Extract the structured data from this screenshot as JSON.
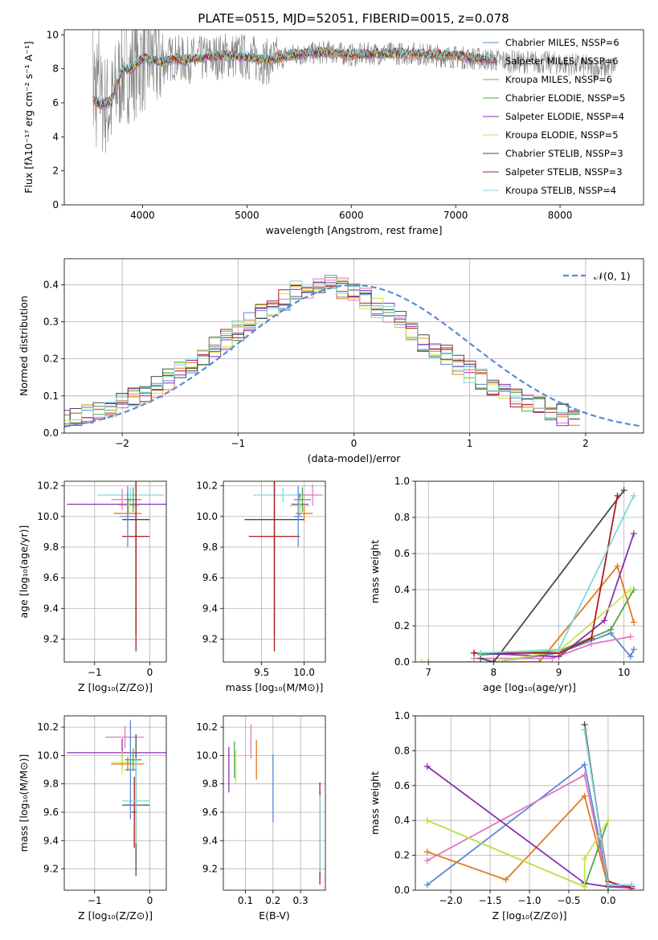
{
  "figure_title": "PLATE=0515, MJD=52051, FIBERID=0015, z=0.078",
  "chart_data": [
    {
      "id": "spectrum",
      "type": "line",
      "xlabel": "wavelength [Angstrom, rest frame]",
      "ylabel": "Flux [fλ10⁻¹⁷ erg cm⁻² s⁻¹ A⁻¹]",
      "xlim": [
        3250,
        8800
      ],
      "ylim": [
        0,
        10.3
      ],
      "xticks": [
        4000,
        5000,
        6000,
        7000,
        8000
      ],
      "yticks": [
        0,
        2,
        4,
        6,
        8,
        10
      ],
      "grid": false,
      "legend_position": "top-right",
      "data_line": {
        "color": "#808080",
        "x": [
          3525,
          3600,
          3700,
          3800,
          3900,
          4000,
          4100,
          4200,
          4300,
          4400,
          4600,
          4800,
          5000,
          5200,
          5400,
          5600,
          5800,
          6000,
          6200,
          6400,
          6600,
          6800,
          7000,
          7200,
          7400,
          7600,
          7800,
          8000,
          8200,
          8400,
          8530
        ],
        "y": [
          9.5,
          6.0,
          5.8,
          7.8,
          8.0,
          8.5,
          8.6,
          8.4,
          8.7,
          8.5,
          8.6,
          8.8,
          8.7,
          8.4,
          8.8,
          8.9,
          9.0,
          8.8,
          8.9,
          8.9,
          8.9,
          8.8,
          8.7,
          8.6,
          8.5,
          8.4,
          8.4,
          8.3,
          8.2,
          8.0,
          8.2
        ]
      },
      "series": [
        {
          "name": "Chabrier MILES, N_SSP=6",
          "color": "#5a8ad6"
        },
        {
          "name": "Salpeter MILES, N_SSP=6",
          "color": "#e377c2"
        },
        {
          "name": "Kroupa MILES, N_SSP=6",
          "color": "#e07b1f"
        },
        {
          "name": "Chabrier ELODIE, N_SSP=5",
          "color": "#4aa84a"
        },
        {
          "name": "Salpeter ELODIE, N_SSP=4",
          "color": "#8c2fb0"
        },
        {
          "name": "Kroupa ELODIE, N_SSP=5",
          "color": "#cbe34b"
        },
        {
          "name": "Chabrier STELIB, N_SSP=3",
          "color": "#4a4a4a"
        },
        {
          "name": "Salpeter STELIB, N_SSP=3",
          "color": "#b01c1c"
        },
        {
          "name": "Kroupa STELIB, N_SSP=4",
          "color": "#7ed8e0"
        }
      ],
      "model_curve": {
        "x": [
          3525,
          3600,
          3700,
          3800,
          3900,
          4000,
          4100,
          4200,
          4300,
          4400,
          4600,
          4800,
          5000,
          5200,
          5400,
          5600,
          5800,
          6000,
          6200,
          6400,
          6600,
          6800,
          7000,
          7200,
          7400
        ],
        "y": [
          6.2,
          5.9,
          6.1,
          7.9,
          8.0,
          8.6,
          8.5,
          8.4,
          8.6,
          8.5,
          8.7,
          8.8,
          8.7,
          8.5,
          8.8,
          8.9,
          9.0,
          8.8,
          8.9,
          8.9,
          8.9,
          8.8,
          8.8,
          8.6,
          8.5
        ]
      }
    },
    {
      "id": "residuals",
      "type": "line",
      "xlabel": "(data-model)/error",
      "ylabel": "Normed distribution",
      "xlim": [
        -2.5,
        2.5
      ],
      "ylim": [
        0,
        0.47
      ],
      "xticks": [
        -2,
        -1,
        0,
        1,
        2
      ],
      "yticks": [
        0.0,
        0.1,
        0.2,
        0.3,
        0.4
      ],
      "grid": true,
      "legend": [
        {
          "name": "𝒩(0, 1)",
          "color": "#5a8ad6",
          "style": "dashed"
        }
      ],
      "legend_position": "top-right",
      "bin_width": 0.1,
      "histogram_envelope": [
        0.035,
        0.04,
        0.05,
        0.06,
        0.07,
        0.085,
        0.095,
        0.11,
        0.125,
        0.145,
        0.165,
        0.185,
        0.21,
        0.23,
        0.25,
        0.275,
        0.3,
        0.32,
        0.34,
        0.36,
        0.38,
        0.39,
        0.4,
        0.4,
        0.39,
        0.38,
        0.36,
        0.34,
        0.32,
        0.3,
        0.275,
        0.25,
        0.23,
        0.21,
        0.185,
        0.165,
        0.145,
        0.125,
        0.11,
        0.095,
        0.085,
        0.07,
        0.06,
        0.05,
        0.045
      ]
    },
    {
      "id": "Z_vs_age",
      "type": "scatter",
      "xlabel": "Z [log₁₀(Z/Z⊙)]",
      "ylabel": "age  [log₁₀(age/yr)]",
      "xlim": [
        -1.55,
        0.3
      ],
      "ylim": [
        9.05,
        10.23
      ],
      "xticks": [
        -1,
        0
      ],
      "yticks": [
        9.2,
        9.4,
        9.6,
        9.8,
        10.0,
        10.2
      ],
      "grid": true,
      "points": [
        {
          "x": -0.35,
          "y": 10.14,
          "xerr": 0.6,
          "yerr": 0.05,
          "series": 8
        },
        {
          "x": -0.5,
          "y": 10.11,
          "xerr": 0.2,
          "yerr": 0.07,
          "series": 1
        },
        {
          "x": -0.4,
          "y": 10.08,
          "xerr": 1.1,
          "yerr": 0.07,
          "series": 4
        },
        {
          "x": -0.4,
          "y": 10.02,
          "xerr": 0.25,
          "yerr": 0.05,
          "series": 2
        },
        {
          "x": -0.38,
          "y": 10.07,
          "xerr": 0.18,
          "yerr": 0.05,
          "series": 5
        },
        {
          "x": -0.3,
          "y": 10.11,
          "xerr": 0.15,
          "yerr": 0.08,
          "series": 3
        },
        {
          "x": -0.25,
          "y": 9.98,
          "xerr": 0.25,
          "yerr": 0.75,
          "series": 6
        },
        {
          "x": -0.25,
          "y": 9.87,
          "xerr": 0.25,
          "yerr": 0.75,
          "series": 7
        },
        {
          "x": -0.4,
          "y": 10.0,
          "xerr": 0.15,
          "yerr": 0.2,
          "series": 0
        }
      ]
    },
    {
      "id": "mass_vs_age",
      "type": "scatter",
      "xlabel": "mass [log₁₀(M/M⊙)]",
      "ylabel": "",
      "xlim": [
        9.05,
        10.25
      ],
      "ylim": [
        9.05,
        10.23
      ],
      "xticks": [
        9.5,
        10.0
      ],
      "yticks": [
        9.2,
        9.4,
        9.6,
        9.8,
        10.0,
        10.2
      ],
      "grid": true,
      "points": [
        {
          "x": 9.75,
          "y": 10.14,
          "xerr": 0.35,
          "yerr": 0.05,
          "series": 8
        },
        {
          "x": 10.1,
          "y": 10.14,
          "xerr": 0.12,
          "yerr": 0.07,
          "series": 1
        },
        {
          "x": 9.95,
          "y": 10.08,
          "xerr": 0.1,
          "yerr": 0.07,
          "series": 4
        },
        {
          "x": 10.0,
          "y": 10.02,
          "xerr": 0.1,
          "yerr": 0.05,
          "series": 2
        },
        {
          "x": 9.95,
          "y": 10.07,
          "xerr": 0.12,
          "yerr": 0.05,
          "series": 5
        },
        {
          "x": 9.98,
          "y": 10.11,
          "xerr": 0.1,
          "yerr": 0.08,
          "series": 3
        },
        {
          "x": 9.65,
          "y": 9.98,
          "xerr": 0.35,
          "yerr": 0.75,
          "series": 6
        },
        {
          "x": 9.65,
          "y": 9.87,
          "xerr": 0.3,
          "yerr": 0.75,
          "series": 7
        },
        {
          "x": 9.93,
          "y": 10.0,
          "xerr": 0.05,
          "yerr": 0.2,
          "series": 0
        }
      ]
    },
    {
      "id": "age_vs_weight",
      "type": "line",
      "xlabel": "age  [log₁₀(age/yr)]",
      "ylabel": "mass weight",
      "xlim": [
        6.8,
        10.3
      ],
      "ylim": [
        0,
        1.0
      ],
      "xticks": [
        7,
        8,
        9,
        10
      ],
      "yticks": [
        0.0,
        0.2,
        0.4,
        0.6,
        0.8,
        1.0
      ],
      "grid": true,
      "series_lines": [
        {
          "series": 0,
          "x": [
            8.0,
            9.0,
            9.8,
            10.1,
            10.15
          ],
          "y": [
            0.0,
            0.05,
            0.16,
            0.03,
            0.07
          ]
        },
        {
          "series": 1,
          "x": [
            7.7,
            8.9,
            9.5,
            10.1
          ],
          "y": [
            0.02,
            0.02,
            0.1,
            0.14
          ]
        },
        {
          "series": 2,
          "x": [
            7.0,
            8.7,
            9.9,
            10.15
          ],
          "y": [
            0.0,
            0.0,
            0.53,
            0.22
          ]
        },
        {
          "series": 3,
          "x": [
            7.8,
            9.0,
            9.8,
            10.15
          ],
          "y": [
            0.04,
            0.06,
            0.18,
            0.4
          ]
        },
        {
          "series": 4,
          "x": [
            7.7,
            9.0,
            9.7,
            10.15
          ],
          "y": [
            0.05,
            0.03,
            0.23,
            0.71
          ]
        },
        {
          "series": 5,
          "x": [
            6.9,
            8.0,
            9.0,
            10.1
          ],
          "y": [
            0.0,
            0.0,
            0.06,
            0.4
          ]
        },
        {
          "series": 6,
          "x": [
            7.8,
            8.0,
            10.0
          ],
          "y": [
            0.02,
            0.0,
            0.95
          ]
        },
        {
          "series": 7,
          "x": [
            7.7,
            9.0,
            9.5,
            9.9
          ],
          "y": [
            0.05,
            0.05,
            0.13,
            0.92
          ]
        },
        {
          "series": 8,
          "x": [
            7.8,
            9.0,
            10.15
          ],
          "y": [
            0.05,
            0.07,
            0.92
          ]
        }
      ]
    },
    {
      "id": "Z_vs_mass",
      "type": "scatter",
      "xlabel": "Z [log₁₀(Z/Z⊙)]",
      "ylabel": "mass [log₁₀(M/M⊙)]",
      "xlim": [
        -1.55,
        0.3
      ],
      "ylim": [
        9.05,
        10.28
      ],
      "xticks": [
        -1,
        0
      ],
      "yticks": [
        9.2,
        9.4,
        9.6,
        9.8,
        10.0,
        10.2
      ],
      "grid": true,
      "points": [
        {
          "x": -0.45,
          "y": 10.13,
          "xerr": 0.35,
          "yerr": 0.08,
          "series": 1
        },
        {
          "x": -0.5,
          "y": 10.02,
          "xerr": 1.0,
          "yerr": 0.1,
          "series": 4
        },
        {
          "x": -0.5,
          "y": 9.95,
          "xerr": 0.2,
          "yerr": 0.08,
          "series": 5
        },
        {
          "x": -0.4,
          "y": 9.94,
          "xerr": 0.3,
          "yerr": 0.05,
          "series": 2
        },
        {
          "x": -0.3,
          "y": 9.97,
          "xerr": 0.15,
          "yerr": 0.08,
          "series": 3
        },
        {
          "x": -0.25,
          "y": 9.65,
          "xerr": 0.25,
          "yerr": 0.5,
          "series": 6
        },
        {
          "x": -0.28,
          "y": 9.6,
          "xerr": 0.05,
          "yerr": 0.25,
          "series": 7
        },
        {
          "x": -0.25,
          "y": 9.68,
          "xerr": 0.25,
          "yerr": 0.3,
          "series": 8
        },
        {
          "x": -0.35,
          "y": 9.9,
          "xerr": 0.1,
          "yerr": 0.35,
          "series": 0
        }
      ]
    },
    {
      "id": "ebv_vs_mass",
      "type": "scatter",
      "xlabel": "E(B-V)",
      "ylabel": "",
      "xlim": [
        0.02,
        0.39
      ],
      "ylim": [
        9.05,
        10.28
      ],
      "xticks": [
        0.1,
        0.2,
        0.3
      ],
      "yticks": [
        9.2,
        9.4,
        9.6,
        9.8,
        10.0,
        10.2
      ],
      "grid": true,
      "points": [
        {
          "x": 0.04,
          "y": 9.9,
          "xerr": 0.0,
          "yerr": 0.16,
          "series": 4
        },
        {
          "x": 0.06,
          "y": 9.97,
          "xerr": 0.0,
          "yerr": 0.13,
          "series": 3
        },
        {
          "x": 0.065,
          "y": 9.92,
          "xerr": 0.0,
          "yerr": 0.12,
          "series": 5
        },
        {
          "x": 0.12,
          "y": 10.1,
          "xerr": 0.0,
          "yerr": 0.12,
          "series": 1
        },
        {
          "x": 0.14,
          "y": 9.97,
          "xerr": 0.0,
          "yerr": 0.14,
          "series": 2
        },
        {
          "x": 0.2,
          "y": 9.77,
          "xerr": 0.0,
          "yerr": 0.24,
          "series": 0
        },
        {
          "x": 0.37,
          "y": 9.45,
          "xerr": 0.0,
          "yerr": 0.36,
          "series": 7
        },
        {
          "x": 0.37,
          "y": 9.45,
          "xerr": 0.0,
          "yerr": 0.3,
          "series": 6
        },
        {
          "x": 0.37,
          "y": 9.45,
          "xerr": 0.0,
          "yerr": 0.27,
          "series": 8
        }
      ]
    },
    {
      "id": "Z_vs_weight",
      "type": "line",
      "xlabel": "Z [log₁₀(Z/Z⊙)]",
      "ylabel": "mass weight",
      "xlim": [
        -2.45,
        0.45
      ],
      "ylim": [
        0,
        1.0
      ],
      "xticks": [
        -2.0,
        -1.5,
        -1.0,
        -0.5,
        0.0
      ],
      "yticks": [
        0.0,
        0.2,
        0.4,
        0.6,
        0.8,
        1.0
      ],
      "grid": true,
      "series_lines": [
        {
          "series": 0,
          "x": [
            -2.3,
            -0.3,
            0.0,
            0.3
          ],
          "y": [
            0.03,
            0.72,
            0.03,
            0.03
          ]
        },
        {
          "series": 1,
          "x": [
            -2.3,
            -0.3,
            0.0,
            0.3
          ],
          "y": [
            0.17,
            0.66,
            0.02,
            0.01
          ]
        },
        {
          "series": 2,
          "x": [
            -2.3,
            -1.3,
            -0.3,
            0.0
          ],
          "y": [
            0.22,
            0.06,
            0.54,
            0.02
          ]
        },
        {
          "series": 3,
          "x": [
            -2.3,
            -0.3,
            0.0
          ],
          "y": [
            0.4,
            0.02,
            0.4
          ]
        },
        {
          "series": 4,
          "x": [
            -2.3,
            -0.3,
            0.0,
            0.3
          ],
          "y": [
            0.71,
            0.04,
            0.02,
            0.02
          ]
        },
        {
          "series": 5,
          "x": [
            -2.3,
            -0.3,
            -0.3,
            0.0
          ],
          "y": [
            0.4,
            0.02,
            0.18,
            0.4
          ]
        },
        {
          "series": 6,
          "x": [
            -0.3,
            0.0
          ],
          "y": [
            0.95,
            0.02
          ]
        },
        {
          "series": 7,
          "x": [
            -0.3,
            0.0,
            0.3
          ],
          "y": [
            0.92,
            0.05,
            0.01
          ]
        },
        {
          "series": 8,
          "x": [
            -0.3,
            0.0,
            0.3
          ],
          "y": [
            0.92,
            0.03,
            0.03
          ]
        }
      ]
    }
  ]
}
